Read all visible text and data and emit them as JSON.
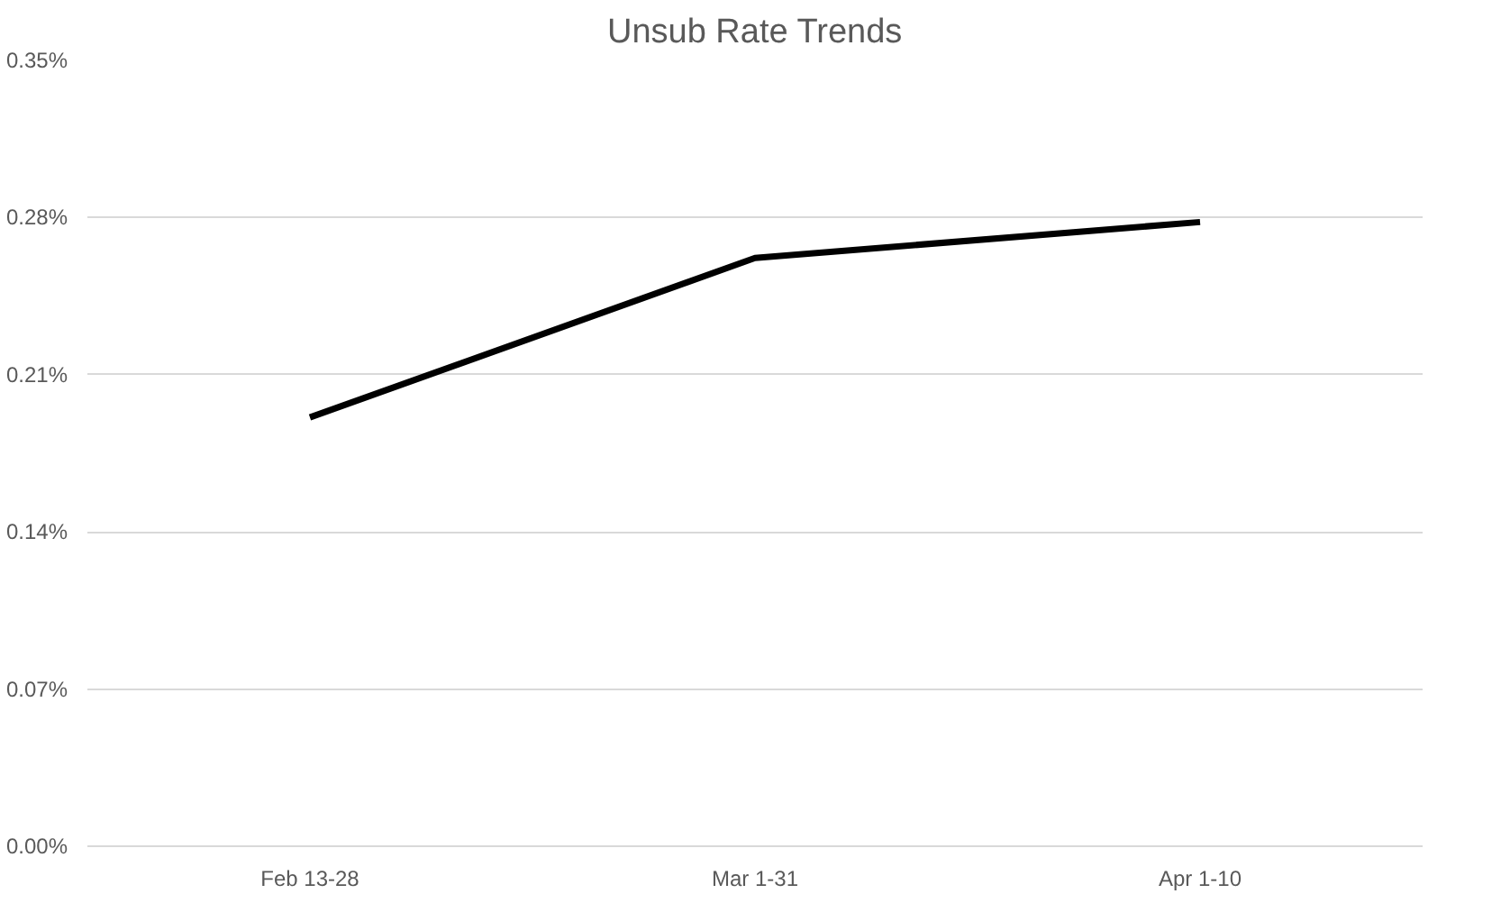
{
  "chart_data": {
    "type": "line",
    "title": "Unsub Rate Trends",
    "categories": [
      "Feb 13-28",
      "Mar 1-31",
      "Apr 1-10"
    ],
    "series": [
      {
        "color": "#000000",
        "values": [
          0.191,
          0.262,
          0.278
        ]
      }
    ],
    "ylim": [
      0,
      0.35
    ],
    "yticks": [
      {
        "value": 0,
        "label": "0.00%"
      },
      {
        "value": 0.07,
        "label": "0.07%"
      },
      {
        "value": 0.14,
        "label": "0.14%"
      },
      {
        "value": 0.21,
        "label": "0.21%"
      },
      {
        "value": 0.28,
        "label": "0.28%"
      },
      {
        "value": 0.35,
        "label": "0.35%"
      }
    ],
    "grid": "y",
    "marker": "none",
    "line_style": "solid"
  }
}
